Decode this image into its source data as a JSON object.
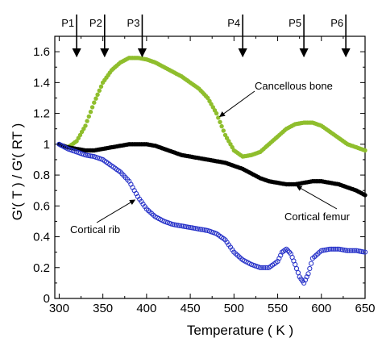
{
  "chart_data": {
    "type": "scatter",
    "xlabel": "Temperature ( K )",
    "ylabel": "G'( T ) / G'( RT )",
    "xlim": [
      295,
      650
    ],
    "ylim": [
      0,
      1.7
    ],
    "x_ticks": [
      "300",
      "350",
      "400",
      "450",
      "500",
      "550",
      "600",
      "650"
    ],
    "x_tick_values": [
      300,
      350,
      400,
      450,
      500,
      550,
      600,
      650
    ],
    "y_ticks": [
      "0",
      "0.2",
      "0.4",
      "0.6",
      "0.8",
      "1",
      "1.2",
      "1.4",
      "1.6"
    ],
    "y_tick_values": [
      0,
      0.2,
      0.4,
      0.6,
      0.8,
      1,
      1.2,
      1.4,
      1.6
    ],
    "grid": false,
    "series": [
      {
        "name": "Cancellous bone",
        "color": "#8fbe2d",
        "marker": "filled-circle",
        "x": [
          300,
          310,
          320,
          330,
          340,
          350,
          360,
          370,
          380,
          390,
          400,
          410,
          420,
          430,
          440,
          450,
          460,
          470,
          480,
          490,
          500,
          510,
          520,
          530,
          540,
          550,
          560,
          570,
          580,
          590,
          600,
          610,
          620,
          630,
          640,
          650
        ],
        "y": [
          1.0,
          0.98,
          1.02,
          1.12,
          1.27,
          1.4,
          1.48,
          1.53,
          1.56,
          1.56,
          1.55,
          1.53,
          1.5,
          1.47,
          1.44,
          1.4,
          1.36,
          1.3,
          1.2,
          1.06,
          0.96,
          0.92,
          0.93,
          0.95,
          1.0,
          1.05,
          1.1,
          1.13,
          1.14,
          1.14,
          1.12,
          1.08,
          1.04,
          1.0,
          0.98,
          0.96
        ]
      },
      {
        "name": "Cortical femur",
        "color": "#000000",
        "marker": "filled-circle",
        "x": [
          300,
          310,
          320,
          330,
          340,
          350,
          360,
          370,
          380,
          390,
          400,
          410,
          420,
          430,
          440,
          450,
          460,
          470,
          480,
          490,
          500,
          510,
          520,
          530,
          540,
          550,
          560,
          570,
          580,
          590,
          600,
          610,
          620,
          630,
          640,
          650
        ],
        "y": [
          1.0,
          0.98,
          0.97,
          0.96,
          0.96,
          0.97,
          0.98,
          0.99,
          1.0,
          1.0,
          1.0,
          0.99,
          0.97,
          0.95,
          0.93,
          0.92,
          0.91,
          0.9,
          0.89,
          0.88,
          0.86,
          0.84,
          0.81,
          0.78,
          0.76,
          0.75,
          0.74,
          0.74,
          0.75,
          0.76,
          0.76,
          0.75,
          0.74,
          0.72,
          0.7,
          0.67
        ]
      },
      {
        "name": "Cortical rib",
        "color": "#2530c8",
        "marker": "open-circle",
        "x": [
          300,
          310,
          320,
          330,
          340,
          350,
          360,
          370,
          380,
          390,
          400,
          410,
          420,
          430,
          440,
          450,
          460,
          470,
          480,
          490,
          500,
          510,
          520,
          530,
          540,
          550,
          555,
          560,
          565,
          570,
          575,
          580,
          585,
          590,
          600,
          610,
          620,
          630,
          640,
          650
        ],
        "y": [
          1.0,
          0.97,
          0.95,
          0.93,
          0.92,
          0.9,
          0.86,
          0.82,
          0.76,
          0.66,
          0.58,
          0.53,
          0.5,
          0.48,
          0.47,
          0.46,
          0.45,
          0.44,
          0.42,
          0.38,
          0.3,
          0.25,
          0.22,
          0.2,
          0.2,
          0.24,
          0.3,
          0.32,
          0.29,
          0.22,
          0.14,
          0.1,
          0.16,
          0.26,
          0.31,
          0.32,
          0.32,
          0.31,
          0.31,
          0.3
        ]
      }
    ],
    "markers": [
      {
        "label": "P1",
        "x": 320
      },
      {
        "label": "P2",
        "x": 352
      },
      {
        "label": "P3",
        "x": 395
      },
      {
        "label": "P4",
        "x": 510
      },
      {
        "label": "P5",
        "x": 580
      },
      {
        "label": "P6",
        "x": 628
      }
    ],
    "annotations": [
      {
        "text": "Cancellous bone",
        "target_x": 480,
        "target_y": 1.2
      },
      {
        "text": "Cortical femur",
        "target_x": 568,
        "target_y": 0.75
      },
      {
        "text": "Cortical rib",
        "target_x": 383,
        "target_y": 0.66
      }
    ]
  }
}
